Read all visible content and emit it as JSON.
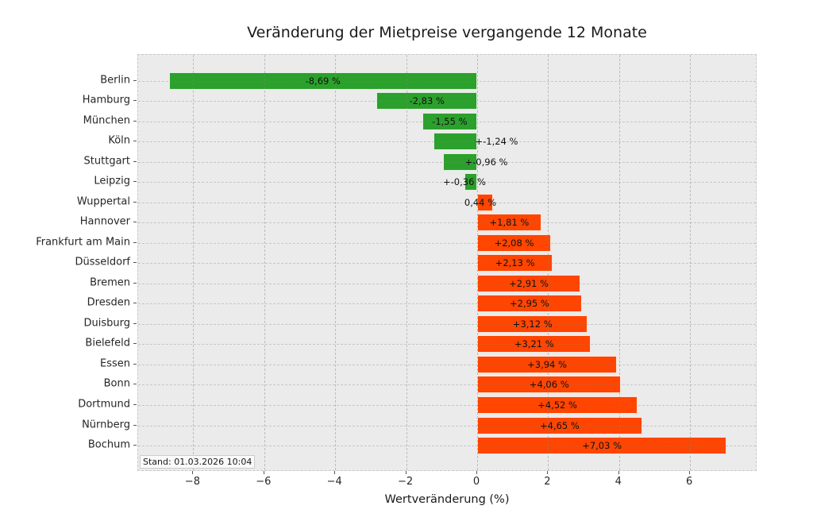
{
  "chart_data": {
    "type": "bar",
    "orientation": "horizontal",
    "title": "Veränderung der Mietpreise vergangende 12 Monate",
    "xlabel": "Wertveränderung (%)",
    "ylabel": "",
    "xlim": [
      -9.55,
      7.9
    ],
    "grid": "dashed",
    "legend": "none",
    "plot_background": "#ebebeb",
    "categories": [
      "Berlin",
      "Hamburg",
      "München",
      "Köln",
      "Stuttgart",
      "Leipzig",
      "Wuppertal",
      "Hannover",
      "Frankfurt am Main",
      "Düsseldorf",
      "Bremen",
      "Dresden",
      "Duisburg",
      "Bielefeld",
      "Essen",
      "Bonn",
      "Dortmund",
      "Nürnberg",
      "Bochum"
    ],
    "values": [
      -8.69,
      -2.83,
      -1.55,
      -1.24,
      -0.96,
      -0.36,
      0.44,
      1.81,
      2.08,
      2.13,
      2.91,
      2.95,
      3.12,
      3.21,
      3.94,
      4.06,
      4.52,
      4.65,
      7.03
    ],
    "value_labels": [
      "-8,69 %",
      "-2,83 %",
      "-1,55 %",
      "+-1,24 %",
      "+-0,96 %",
      "+-0,36 %",
      "0,44 %",
      "+1,81 %",
      "+2,08 %",
      "+2,13 %",
      "+2,91 %",
      "+2,95 %",
      "+3,12 %",
      "+3,21 %",
      "+3,94 %",
      "+4,06 %",
      "+4,52 %",
      "+4,65 %",
      "+7,03 %"
    ],
    "x_ticks": [
      -8,
      -6,
      -4,
      -2,
      0,
      2,
      4,
      6
    ],
    "x_tick_labels": [
      "−8",
      "−6",
      "−4",
      "−2",
      "0",
      "2",
      "4",
      "6"
    ],
    "colors": {
      "negative_bar": "#2ca02c",
      "positive_bar": "#ff4500",
      "label_text": "#111111"
    },
    "annotation": "Stand: 01.03.2026 10:04"
  }
}
